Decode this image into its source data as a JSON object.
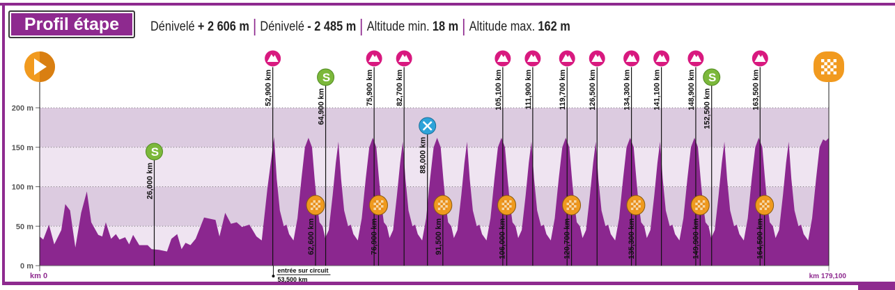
{
  "header": {
    "title": "Profil étape",
    "stats": [
      {
        "label": "Dénivelé",
        "value": "+ 2 606 m"
      },
      {
        "label": "Dénivelé",
        "value": "- 2 485 m"
      },
      {
        "label": "Altitude min.",
        "value": "18 m"
      },
      {
        "label": "Altitude max.",
        "value": "162 m"
      }
    ]
  },
  "colors": {
    "frame": "#8e2a8f",
    "profile": "#8b278f",
    "band_dark": "#dccbe0",
    "band_light": "#efe4f1",
    "mountain": "#d8197f",
    "sprint": "#7cb83b",
    "feed": "#2ea3d9",
    "lap": "#ef9a1e"
  },
  "chart_data": {
    "type": "area",
    "xlabel_start": "km 0",
    "xlabel_end": "km 179,100",
    "xlim": [
      0,
      179.1
    ],
    "ylim": [
      0,
      200
    ],
    "y_ticks": [
      {
        "v": 0,
        "label": "0 m"
      },
      {
        "v": 50,
        "label": "50 m"
      },
      {
        "v": 100,
        "label": "100 m"
      },
      {
        "v": 150,
        "label": "150 m"
      },
      {
        "v": 200,
        "label": "200 m"
      }
    ],
    "grid": true,
    "profile": [
      [
        0,
        37
      ],
      [
        0.8,
        33
      ],
      [
        2.1,
        52
      ],
      [
        3.3,
        27
      ],
      [
        4.9,
        45
      ],
      [
        5.8,
        78
      ],
      [
        6.9,
        70
      ],
      [
        8.1,
        23
      ],
      [
        9.4,
        67
      ],
      [
        10.7,
        94
      ],
      [
        11.7,
        55
      ],
      [
        13.3,
        39
      ],
      [
        14.2,
        37
      ],
      [
        15.0,
        55
      ],
      [
        16.2,
        34
      ],
      [
        17.3,
        40
      ],
      [
        18.1,
        33
      ],
      [
        19.4,
        36
      ],
      [
        20.3,
        27
      ],
      [
        21.2,
        39
      ],
      [
        22.6,
        26
      ],
      [
        24.5,
        26
      ],
      [
        25.4,
        21
      ],
      [
        27.1,
        20
      ],
      [
        28.9,
        18
      ],
      [
        29.9,
        34
      ],
      [
        31.2,
        40
      ],
      [
        32.2,
        21
      ],
      [
        33.1,
        29
      ],
      [
        34.2,
        26
      ],
      [
        35.4,
        34
      ],
      [
        37.3,
        61
      ],
      [
        39.9,
        58
      ],
      [
        40.8,
        37
      ],
      [
        42.1,
        67
      ],
      [
        43.4,
        53
      ],
      [
        44.7,
        55
      ],
      [
        45.9,
        49
      ],
      [
        47.6,
        52
      ],
      [
        49.2,
        37
      ],
      [
        50.4,
        32
      ],
      [
        51.7,
        99
      ],
      [
        53.2,
        163
      ],
      [
        53.8,
        110
      ],
      [
        54.5,
        70
      ],
      [
        55.4,
        50
      ],
      [
        56.0,
        52
      ],
      [
        56.6,
        40
      ],
      [
        57.6,
        32
      ],
      [
        58.5,
        60
      ],
      [
        59.4,
        110
      ],
      [
        60.2,
        150
      ],
      [
        61.0,
        162
      ],
      [
        61.8,
        150
      ],
      [
        62.4,
        110
      ],
      [
        62.9,
        80
      ],
      [
        63.5,
        55
      ],
      [
        64.2,
        50
      ],
      [
        64.8,
        35
      ],
      [
        65.6,
        45
      ],
      [
        66.5,
        90
      ],
      [
        67.2,
        130
      ],
      [
        67.8,
        157
      ],
      [
        68.4,
        110
      ],
      [
        69.1,
        70
      ],
      [
        70.0,
        50
      ],
      [
        70.6,
        52
      ],
      [
        71.2,
        40
      ],
      [
        72.2,
        32
      ],
      [
        73.1,
        60
      ],
      [
        74.0,
        110
      ],
      [
        74.8,
        150
      ],
      [
        75.6,
        162
      ],
      [
        76.4,
        150
      ],
      [
        77.0,
        110
      ],
      [
        77.5,
        80
      ],
      [
        78.1,
        55
      ],
      [
        78.8,
        50
      ],
      [
        79.4,
        35
      ],
      [
        80.2,
        45
      ],
      [
        81.1,
        90
      ],
      [
        81.8,
        130
      ],
      [
        82.4,
        157
      ],
      [
        83.0,
        110
      ],
      [
        83.7,
        70
      ],
      [
        84.6,
        50
      ],
      [
        85.2,
        52
      ],
      [
        85.8,
        40
      ],
      [
        86.8,
        32
      ],
      [
        87.7,
        60
      ],
      [
        88.6,
        110
      ],
      [
        89.4,
        150
      ],
      [
        90.2,
        162
      ],
      [
        91.0,
        150
      ],
      [
        91.6,
        110
      ],
      [
        92.1,
        80
      ],
      [
        92.7,
        55
      ],
      [
        93.4,
        50
      ],
      [
        94.0,
        35
      ],
      [
        94.8,
        45
      ],
      [
        95.7,
        90
      ],
      [
        96.4,
        130
      ],
      [
        97.0,
        157
      ],
      [
        97.6,
        110
      ],
      [
        98.3,
        70
      ],
      [
        99.2,
        50
      ],
      [
        99.8,
        52
      ],
      [
        100.4,
        40
      ],
      [
        101.4,
        32
      ],
      [
        102.3,
        60
      ],
      [
        103.2,
        110
      ],
      [
        104.0,
        150
      ],
      [
        104.8,
        162
      ],
      [
        105.6,
        150
      ],
      [
        106.2,
        110
      ],
      [
        106.7,
        80
      ],
      [
        107.3,
        55
      ],
      [
        108.0,
        50
      ],
      [
        108.6,
        35
      ],
      [
        109.4,
        45
      ],
      [
        110.3,
        90
      ],
      [
        111.0,
        130
      ],
      [
        111.6,
        157
      ],
      [
        112.2,
        110
      ],
      [
        112.9,
        70
      ],
      [
        113.8,
        50
      ],
      [
        114.4,
        52
      ],
      [
        115.0,
        40
      ],
      [
        116.0,
        32
      ],
      [
        116.9,
        60
      ],
      [
        117.8,
        110
      ],
      [
        118.6,
        150
      ],
      [
        119.4,
        162
      ],
      [
        120.2,
        150
      ],
      [
        120.8,
        110
      ],
      [
        121.3,
        80
      ],
      [
        121.9,
        55
      ],
      [
        122.6,
        50
      ],
      [
        123.2,
        35
      ],
      [
        124.0,
        45
      ],
      [
        124.9,
        90
      ],
      [
        125.6,
        130
      ],
      [
        126.2,
        157
      ],
      [
        126.8,
        110
      ],
      [
        127.5,
        70
      ],
      [
        128.4,
        50
      ],
      [
        129.0,
        52
      ],
      [
        129.6,
        40
      ],
      [
        130.6,
        32
      ],
      [
        131.5,
        60
      ],
      [
        132.4,
        110
      ],
      [
        133.2,
        150
      ],
      [
        134.0,
        162
      ],
      [
        134.8,
        150
      ],
      [
        135.4,
        110
      ],
      [
        135.9,
        80
      ],
      [
        136.5,
        55
      ],
      [
        137.2,
        50
      ],
      [
        137.8,
        35
      ],
      [
        138.6,
        45
      ],
      [
        139.5,
        90
      ],
      [
        140.2,
        130
      ],
      [
        140.8,
        157
      ],
      [
        141.4,
        110
      ],
      [
        142.1,
        70
      ],
      [
        143.0,
        50
      ],
      [
        143.6,
        52
      ],
      [
        144.2,
        40
      ],
      [
        145.2,
        32
      ],
      [
        146.1,
        60
      ],
      [
        147.0,
        110
      ],
      [
        147.8,
        150
      ],
      [
        148.6,
        162
      ],
      [
        149.4,
        150
      ],
      [
        150.0,
        110
      ],
      [
        150.5,
        80
      ],
      [
        151.1,
        55
      ],
      [
        151.8,
        50
      ],
      [
        152.4,
        35
      ],
      [
        153.2,
        45
      ],
      [
        154.1,
        90
      ],
      [
        154.8,
        130
      ],
      [
        155.4,
        157
      ],
      [
        156.0,
        110
      ],
      [
        156.7,
        70
      ],
      [
        157.6,
        50
      ],
      [
        158.2,
        52
      ],
      [
        158.8,
        40
      ],
      [
        159.8,
        32
      ],
      [
        160.7,
        60
      ],
      [
        161.6,
        110
      ],
      [
        162.4,
        150
      ],
      [
        163.2,
        162
      ],
      [
        164.0,
        150
      ],
      [
        164.6,
        110
      ],
      [
        165.1,
        80
      ],
      [
        165.7,
        55
      ],
      [
        166.4,
        50
      ],
      [
        167.0,
        35
      ],
      [
        167.8,
        45
      ],
      [
        168.7,
        90
      ],
      [
        169.4,
        130
      ],
      [
        170.0,
        157
      ],
      [
        170.6,
        110
      ],
      [
        171.3,
        70
      ],
      [
        172.2,
        50
      ],
      [
        172.8,
        52
      ],
      [
        173.4,
        40
      ],
      [
        174.4,
        32
      ],
      [
        175.3,
        60
      ],
      [
        176.2,
        110
      ],
      [
        177.0,
        150
      ],
      [
        177.8,
        160
      ],
      [
        178.4,
        158
      ],
      [
        179.1,
        162
      ]
    ],
    "start": {
      "km": 0,
      "icon": "start-play-icon"
    },
    "finish": {
      "km": 179.1,
      "icon": "finish-checkered-icon"
    },
    "markers": [
      {
        "type": "sprint",
        "km": 26.0,
        "label": "26,000 km"
      },
      {
        "type": "mountain",
        "km": 52.9,
        "label": "52,900 km"
      },
      {
        "type": "lap",
        "km": 62.6,
        "label": "62,600 km"
      },
      {
        "type": "sprint",
        "km": 64.9,
        "label": "64,900 km"
      },
      {
        "type": "mountain",
        "km": 75.9,
        "label": "75,900 km"
      },
      {
        "type": "lap",
        "km": 76.9,
        "label": "76,900 km"
      },
      {
        "type": "mountain",
        "km": 82.7,
        "label": "82,700 km"
      },
      {
        "type": "feed",
        "km": 88.0,
        "label": "88,000 km"
      },
      {
        "type": "lap",
        "km": 91.5,
        "label": "91,500 km"
      },
      {
        "type": "mountain",
        "km": 105.1,
        "label": "105,100 km"
      },
      {
        "type": "lap",
        "km": 106.0,
        "label": "106,000 km"
      },
      {
        "type": "mountain",
        "km": 111.9,
        "label": "111,900 km"
      },
      {
        "type": "mountain",
        "km": 119.7,
        "label": "119,700 km"
      },
      {
        "type": "lap",
        "km": 120.7,
        "label": "120,700 km"
      },
      {
        "type": "mountain",
        "km": 126.5,
        "label": "126,500 km"
      },
      {
        "type": "mountain",
        "km": 134.3,
        "label": "134,300 km"
      },
      {
        "type": "lap",
        "km": 135.3,
        "label": "135,300 km"
      },
      {
        "type": "mountain",
        "km": 141.1,
        "label": "141,100 km"
      },
      {
        "type": "mountain",
        "km": 148.9,
        "label": "148,900 km"
      },
      {
        "type": "lap",
        "km": 149.9,
        "label": "149,900 km"
      },
      {
        "type": "sprint",
        "km": 152.5,
        "label": "152,500 km"
      },
      {
        "type": "mountain",
        "km": 163.5,
        "label": "163,500 km"
      },
      {
        "type": "lap",
        "km": 164.5,
        "label": "164,500 km"
      }
    ],
    "annotations": [
      {
        "km": 53.5,
        "text": "entrée sur circuit",
        "sub": "53,500 km"
      }
    ]
  }
}
